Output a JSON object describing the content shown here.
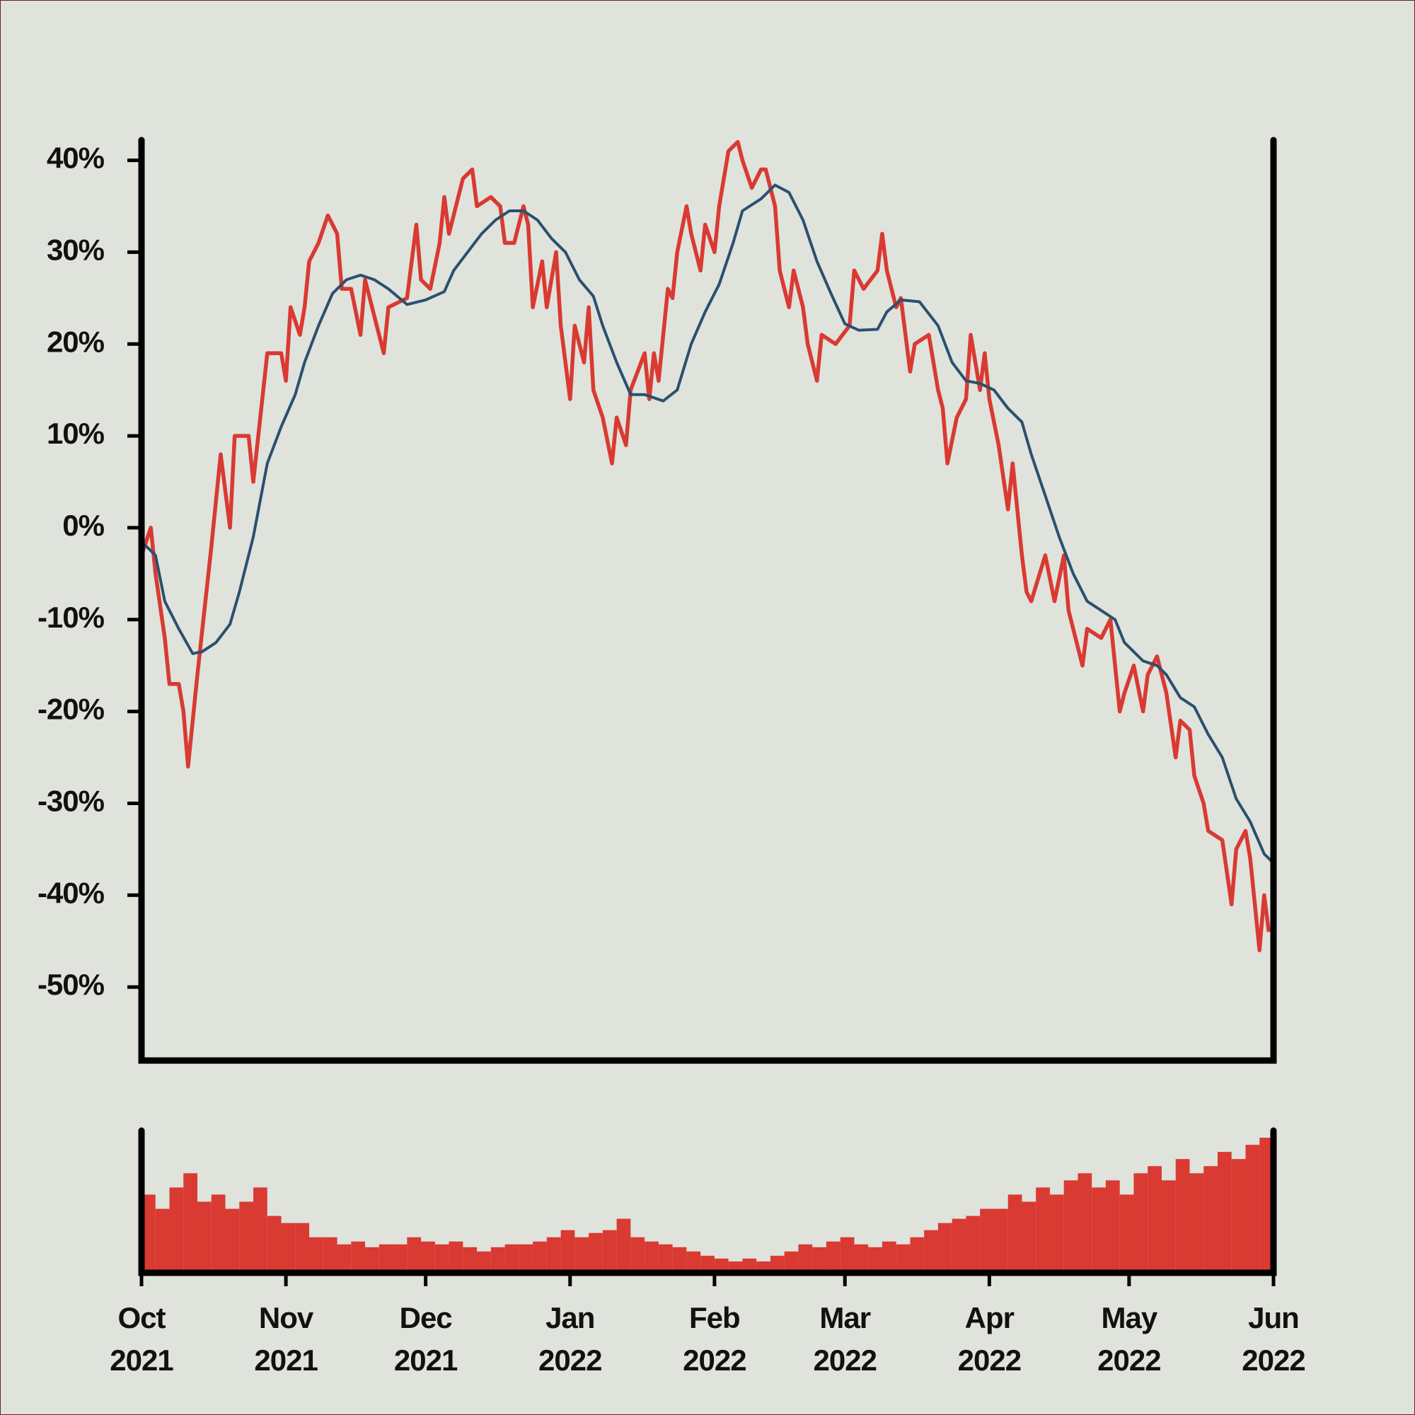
{
  "chart_data": [
    {
      "type": "line",
      "xlim": [
        "2021-10-01",
        "2022-06-01"
      ],
      "ylim": [
        -58,
        42.2
      ],
      "yticks": [
        {
          "value": 40,
          "label": "40%"
        },
        {
          "value": 30,
          "label": "30%"
        },
        {
          "value": 20,
          "label": "20%"
        },
        {
          "value": 10,
          "label": "10%"
        },
        {
          "value": 0,
          "label": "0%"
        },
        {
          "value": -10,
          "label": "-10%"
        },
        {
          "value": -20,
          "label": "-20%"
        },
        {
          "value": -30,
          "label": "-30%"
        },
        {
          "value": -40,
          "label": "-40%"
        },
        {
          "value": -50,
          "label": "-50%"
        }
      ],
      "series": [
        {
          "color": "#d93a32",
          "x": [
            "2021-10-01",
            "2021-10-03",
            "2021-10-04",
            "2021-10-06",
            "2021-10-07",
            "2021-10-09",
            "2021-10-10",
            "2021-10-11",
            "2021-10-13",
            "2021-10-16",
            "2021-10-18",
            "2021-10-20",
            "2021-10-21",
            "2021-10-24",
            "2021-10-25",
            "2021-10-28",
            "2021-10-31",
            "2021-11-01",
            "2021-11-02",
            "2021-11-04",
            "2021-11-05",
            "2021-11-06",
            "2021-11-08",
            "2021-11-10",
            "2021-11-12",
            "2021-11-13",
            "2021-11-15",
            "2021-11-17",
            "2021-11-18",
            "2021-11-21",
            "2021-11-22",
            "2021-11-23",
            "2021-11-27",
            "2021-11-29",
            "2021-11-30",
            "2021-12-02",
            "2021-12-04",
            "2021-12-05",
            "2021-12-06",
            "2021-12-09",
            "2021-12-11",
            "2021-12-12",
            "2021-12-15",
            "2021-12-17",
            "2021-12-18",
            "2021-12-20",
            "2021-12-22",
            "2021-12-23",
            "2021-12-24",
            "2021-12-26",
            "2021-12-27",
            "2021-12-29",
            "2021-12-30",
            "2022-01-01",
            "2022-01-02",
            "2022-01-04",
            "2022-01-05",
            "2022-01-06",
            "2022-01-08",
            "2022-01-10",
            "2022-01-11",
            "2022-01-13",
            "2022-01-14",
            "2022-01-17",
            "2022-01-18",
            "2022-01-19",
            "2022-01-20",
            "2022-01-22",
            "2022-01-23",
            "2022-01-24",
            "2022-01-26",
            "2022-01-27",
            "2022-01-29",
            "2022-01-30",
            "2022-02-01",
            "2022-02-02",
            "2022-02-04",
            "2022-02-06",
            "2022-02-07",
            "2022-02-09",
            "2022-02-11",
            "2022-02-12",
            "2022-02-14",
            "2022-02-15",
            "2022-02-17",
            "2022-02-18",
            "2022-02-20",
            "2022-02-21",
            "2022-02-23",
            "2022-02-24",
            "2022-02-27",
            "2022-03-02",
            "2022-03-03",
            "2022-03-05",
            "2022-03-08",
            "2022-03-09",
            "2022-03-10",
            "2022-03-12",
            "2022-03-13",
            "2022-03-15",
            "2022-03-16",
            "2022-03-19",
            "2022-03-21",
            "2022-03-22",
            "2022-03-23",
            "2022-03-25",
            "2022-03-27",
            "2022-03-28",
            "2022-03-30",
            "2022-03-31",
            "2022-04-01",
            "2022-04-03",
            "2022-04-05",
            "2022-04-06",
            "2022-04-08",
            "2022-04-09",
            "2022-04-10",
            "2022-04-13",
            "2022-04-15",
            "2022-04-17",
            "2022-04-18",
            "2022-04-21",
            "2022-04-22",
            "2022-04-25",
            "2022-04-27",
            "2022-04-29",
            "2022-04-30",
            "2022-05-02",
            "2022-05-04",
            "2022-05-05",
            "2022-05-07",
            "2022-05-09",
            "2022-05-11",
            "2022-05-12",
            "2022-05-14",
            "2022-05-15",
            "2022-05-17",
            "2022-05-18",
            "2022-05-21",
            "2022-05-23",
            "2022-05-24",
            "2022-05-26",
            "2022-05-27",
            "2022-05-29",
            "2022-05-30",
            "2022-05-31"
          ],
          "values": [
            -3,
            0,
            -5,
            -12,
            -17,
            -17,
            -20,
            -26,
            -16,
            -2,
            8,
            0,
            10,
            10,
            5,
            19,
            19,
            16,
            24,
            21,
            24,
            29,
            31,
            34,
            32,
            26,
            26,
            21,
            27,
            21,
            19,
            24,
            25,
            33,
            27,
            26,
            31,
            36,
            32,
            38,
            39,
            35,
            36,
            35,
            31,
            31,
            35,
            33,
            24,
            29,
            24,
            30,
            22,
            14,
            22,
            18,
            24,
            15,
            12,
            7,
            12,
            9,
            15,
            19,
            14,
            19,
            16,
            26,
            25,
            30,
            35,
            32,
            28,
            33,
            30,
            35,
            41,
            42,
            40,
            37,
            39,
            39,
            35,
            28,
            24,
            28,
            24,
            20,
            16,
            21,
            20,
            22,
            28,
            26,
            28,
            32,
            28,
            24,
            25,
            17,
            20,
            21,
            15,
            13,
            7,
            12,
            14,
            21,
            15,
            19,
            14,
            9,
            2,
            7,
            -3,
            -7,
            -8,
            -3,
            -8,
            -3,
            -9,
            -15,
            -11,
            -12,
            -10,
            -20,
            -18,
            -15,
            -20,
            -16,
            -14,
            -18,
            -25,
            -21,
            -22,
            -27,
            -30,
            -33,
            -34,
            -41,
            -35,
            -33,
            -36,
            -46,
            -40,
            -44
          ]
        },
        {
          "color": "#2b506e",
          "x": [
            "2021-10-01",
            "2021-10-04",
            "2021-10-06",
            "2021-10-09",
            "2021-10-12",
            "2021-10-14",
            "2021-10-17",
            "2021-10-20",
            "2021-10-22",
            "2021-10-25",
            "2021-10-28",
            "2021-10-31",
            "2021-11-03",
            "2021-11-05",
            "2021-11-08",
            "2021-11-11",
            "2021-11-14",
            "2021-11-17",
            "2021-11-20",
            "2021-11-23",
            "2021-11-27",
            "2021-12-01",
            "2021-12-05",
            "2021-12-07",
            "2021-12-10",
            "2021-12-13",
            "2021-12-16",
            "2021-12-19",
            "2021-12-22",
            "2021-12-25",
            "2021-12-28",
            "2021-12-31",
            "2022-01-03",
            "2022-01-06",
            "2022-01-08",
            "2022-01-11",
            "2022-01-14",
            "2022-01-17",
            "2022-01-21",
            "2022-01-24",
            "2022-01-27",
            "2022-01-30",
            "2022-02-02",
            "2022-02-05",
            "2022-02-07",
            "2022-02-11",
            "2022-02-14",
            "2022-02-17",
            "2022-02-20",
            "2022-02-23",
            "2022-02-26",
            "2022-03-01",
            "2022-03-04",
            "2022-03-08",
            "2022-03-10",
            "2022-03-13",
            "2022-03-17",
            "2022-03-21",
            "2022-03-24",
            "2022-03-27",
            "2022-03-30",
            "2022-04-02",
            "2022-04-05",
            "2022-04-08",
            "2022-04-10",
            "2022-04-13",
            "2022-04-16",
            "2022-04-19",
            "2022-04-22",
            "2022-04-25",
            "2022-04-28",
            "2022-04-30",
            "2022-05-04",
            "2022-05-07",
            "2022-05-09",
            "2022-05-12",
            "2022-05-15",
            "2022-05-18",
            "2022-05-21",
            "2022-05-24",
            "2022-05-27",
            "2022-05-30",
            "2022-06-01"
          ],
          "values": [
            -1.5,
            -3,
            -8,
            -11,
            -13.7,
            -13.5,
            -12.5,
            -10.5,
            -7,
            -1,
            7,
            11,
            14.5,
            18,
            22,
            25.5,
            27,
            27.5,
            27,
            26,
            24.3,
            24.8,
            25.7,
            28,
            30,
            32,
            33.5,
            34.5,
            34.5,
            33.5,
            31.5,
            30,
            27,
            25.2,
            22,
            18,
            14.5,
            14.5,
            13.8,
            15,
            20,
            23.5,
            26.5,
            31,
            34.5,
            35.8,
            37.3,
            36.5,
            33.5,
            29,
            25.5,
            22.2,
            21.5,
            21.6,
            23.5,
            24.8,
            24.6,
            22,
            18,
            16,
            15.7,
            15,
            13,
            11.5,
            8,
            3.5,
            -1,
            -5,
            -8,
            -9,
            -10,
            -12.5,
            -14.5,
            -15,
            -16,
            -18.5,
            -19.5,
            -22.5,
            -25,
            -29.5,
            -32,
            -35.5,
            -36.5
          ]
        }
      ]
    },
    {
      "type": "bar",
      "color": "#d93a32",
      "xlim": [
        "2021-10-01",
        "2022-06-01"
      ],
      "ylim": [
        0,
        100
      ],
      "xticks": [
        {
          "value": "2021-10-01",
          "label": "Oct 2021"
        },
        {
          "value": "2021-11-01",
          "label": "Nov 2021"
        },
        {
          "value": "2021-12-01",
          "label": "Dec 2021"
        },
        {
          "value": "2022-01-01",
          "label": "Jan 2022"
        },
        {
          "value": "2022-02-01",
          "label": "Feb 2022"
        },
        {
          "value": "2022-03-01",
          "label": "Mar 2022"
        },
        {
          "value": "2022-04-01",
          "label": "Apr 2022"
        },
        {
          "value": "2022-05-01",
          "label": "May 2022"
        },
        {
          "value": "2022-06-01",
          "label": "Jun 2022"
        }
      ],
      "x": [
        "2021-10-01",
        "2021-10-04",
        "2021-10-07",
        "2021-10-10",
        "2021-10-13",
        "2021-10-16",
        "2021-10-19",
        "2021-10-22",
        "2021-10-25",
        "2021-10-28",
        "2021-10-31",
        "2021-11-03",
        "2021-11-06",
        "2021-11-09",
        "2021-11-12",
        "2021-11-15",
        "2021-11-18",
        "2021-11-21",
        "2021-11-24",
        "2021-11-27",
        "2021-11-30",
        "2021-12-03",
        "2021-12-06",
        "2021-12-09",
        "2021-12-12",
        "2021-12-15",
        "2021-12-18",
        "2021-12-21",
        "2021-12-24",
        "2021-12-27",
        "2021-12-30",
        "2022-01-02",
        "2022-01-05",
        "2022-01-08",
        "2022-01-11",
        "2022-01-14",
        "2022-01-17",
        "2022-01-20",
        "2022-01-23",
        "2022-01-26",
        "2022-01-29",
        "2022-02-01",
        "2022-02-04",
        "2022-02-07",
        "2022-02-10",
        "2022-02-13",
        "2022-02-16",
        "2022-02-19",
        "2022-02-22",
        "2022-02-25",
        "2022-02-28",
        "2022-03-03",
        "2022-03-06",
        "2022-03-09",
        "2022-03-12",
        "2022-03-15",
        "2022-03-18",
        "2022-03-21",
        "2022-03-24",
        "2022-03-27",
        "2022-03-30",
        "2022-04-02",
        "2022-04-05",
        "2022-04-08",
        "2022-04-11",
        "2022-04-14",
        "2022-04-17",
        "2022-04-20",
        "2022-04-23",
        "2022-04-26",
        "2022-04-29",
        "2022-05-02",
        "2022-05-05",
        "2022-05-08",
        "2022-05-11",
        "2022-05-14",
        "2022-05-17",
        "2022-05-20",
        "2022-05-23",
        "2022-05-26",
        "2022-05-29"
      ],
      "values": [
        55,
        45,
        60,
        70,
        50,
        55,
        45,
        50,
        60,
        40,
        35,
        35,
        25,
        25,
        20,
        22,
        18,
        20,
        20,
        25,
        22,
        20,
        22,
        18,
        15,
        18,
        20,
        20,
        22,
        25,
        30,
        25,
        28,
        30,
        38,
        25,
        22,
        20,
        18,
        15,
        12,
        10,
        8,
        10,
        8,
        12,
        15,
        20,
        18,
        22,
        25,
        20,
        18,
        22,
        20,
        25,
        30,
        35,
        38,
        40,
        45,
        45,
        55,
        50,
        60,
        55,
        65,
        70,
        60,
        65,
        55,
        70,
        75,
        65,
        80,
        70,
        75,
        85,
        80,
        90,
        95
      ]
    }
  ]
}
